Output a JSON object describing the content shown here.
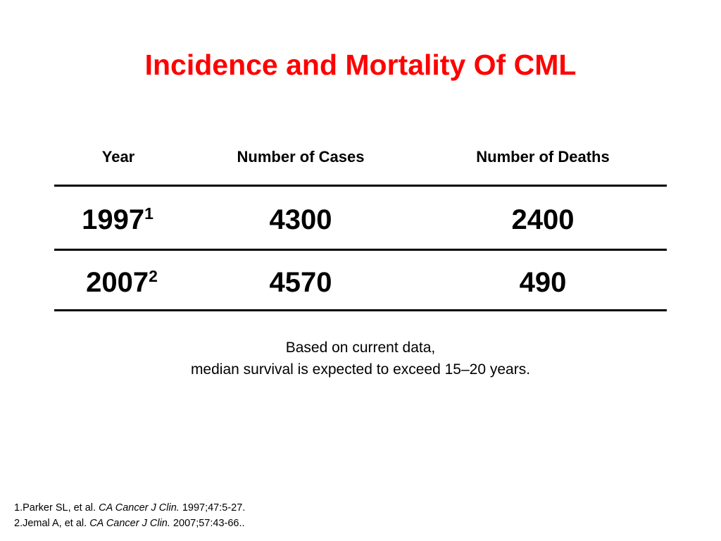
{
  "slide": {
    "title": "Incidence and Mortality Of CML",
    "title_color": "#ff0000"
  },
  "table": {
    "headers": [
      "Year",
      "Number of Cases",
      "Number of Deaths"
    ],
    "rows": [
      {
        "year": "1997",
        "year_ref": "1",
        "cases": "4300",
        "deaths": "2400"
      },
      {
        "year": "2007",
        "year_ref": "2",
        "cases": "4570",
        "deaths": "490"
      }
    ]
  },
  "note": {
    "line1": "Based on current data,",
    "line2": "median survival is expected to exceed 15–20 years."
  },
  "references": [
    {
      "prefix": "1.Parker SL, et al. ",
      "journal": "CA Cancer J Clin.",
      "suffix": " 1997;47:5-27."
    },
    {
      "prefix": "2.Jemal A, et al. ",
      "journal": "CA Cancer J Clin.",
      "suffix": " 2007;57:43-66.."
    }
  ]
}
